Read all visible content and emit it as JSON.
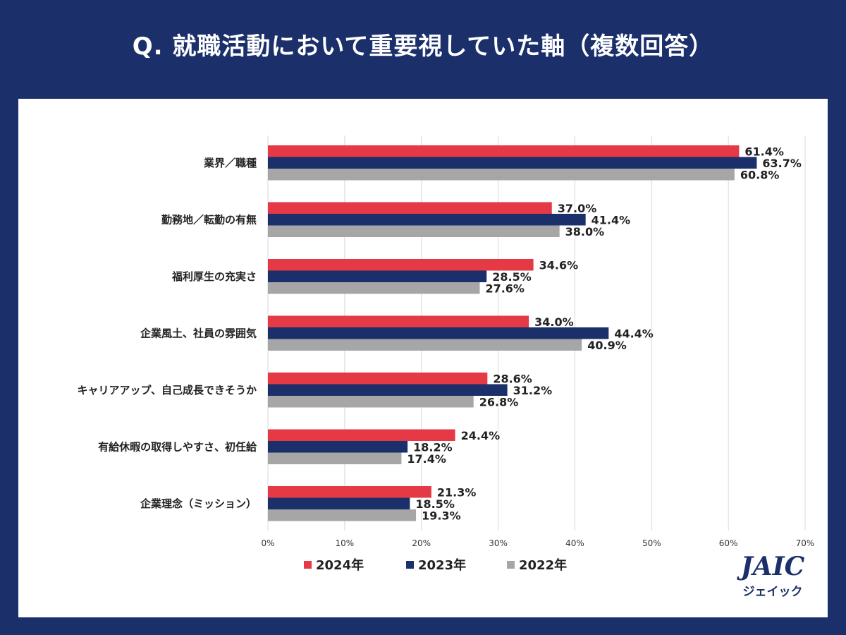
{
  "title": "Q. 就職活動において重要視していた軸（複数回答）",
  "chart_data": {
    "type": "bar",
    "orientation": "horizontal",
    "categories": [
      "業界／職種",
      "勤務地／転勤の有無",
      "福利厚生の充実さ",
      "企業風土、社員の雰囲気",
      "キャリアアップ、自己成長できそうか",
      "有給休暇の取得しやすさ、初任給",
      "企業理念（ミッション）"
    ],
    "series": [
      {
        "name": "2024年",
        "color": "#e63946",
        "values": [
          61.4,
          37.0,
          34.6,
          34.0,
          28.6,
          24.4,
          21.3
        ]
      },
      {
        "name": "2023年",
        "color": "#1b2f6b",
        "values": [
          63.7,
          41.4,
          28.5,
          44.4,
          31.2,
          18.2,
          18.5
        ]
      },
      {
        "name": "2022年",
        "color": "#a6a6a6",
        "values": [
          60.8,
          38.0,
          27.6,
          40.9,
          26.8,
          17.4,
          19.3
        ]
      }
    ],
    "value_labels": [
      [
        "61.4%",
        "37.0%",
        "34.6%",
        "34.0%",
        "28.6%",
        "24.4%",
        "21.3%"
      ],
      [
        "63.7%",
        "41.4%",
        "28.5%",
        "44.4%",
        "31.2%",
        "18.2%",
        "18.5%"
      ],
      [
        "60.8%",
        "38.0%",
        "27.6%",
        "40.9%",
        "26.8%",
        "17.4%",
        "19.3%"
      ]
    ],
    "xlim": [
      0,
      70
    ],
    "xticks": [
      0,
      10,
      20,
      30,
      40,
      50,
      60,
      70
    ],
    "xtick_labels": [
      "0%",
      "10%",
      "20%",
      "30%",
      "40%",
      "50%",
      "60%",
      "70%"
    ],
    "grid": true,
    "legend_position": "bottom"
  },
  "logo": {
    "main": "JAIC",
    "sub": "ジェイック"
  }
}
